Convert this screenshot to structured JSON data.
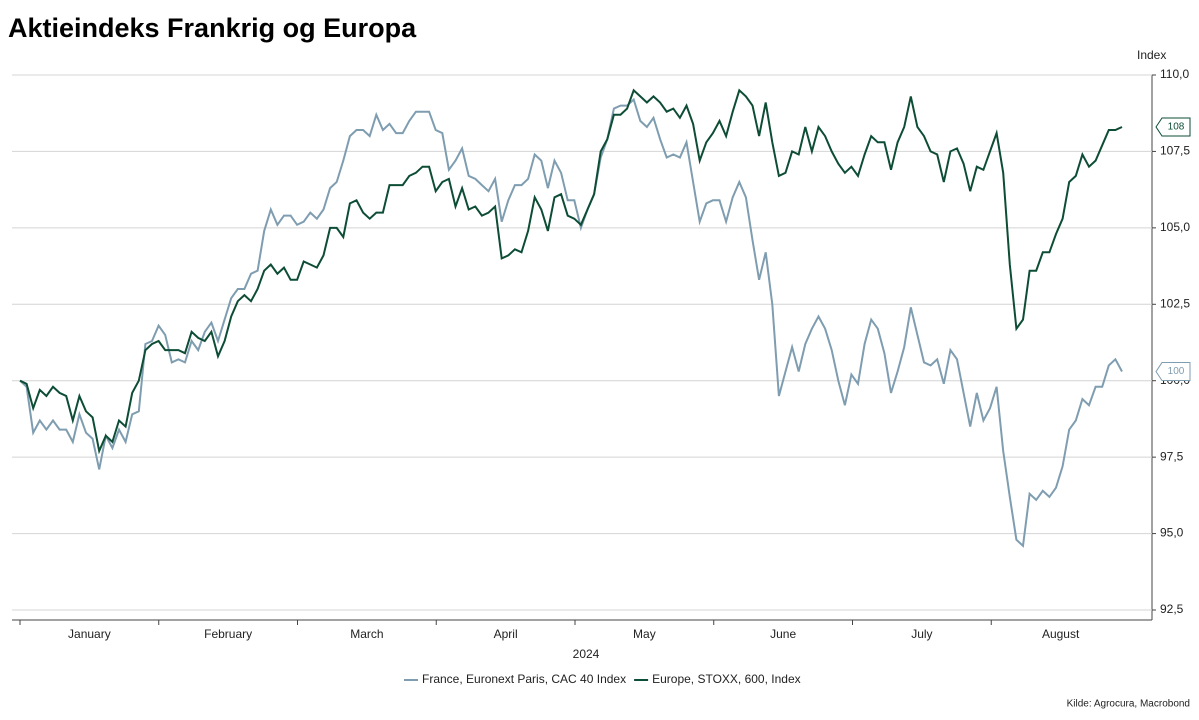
{
  "chart_data": {
    "type": "line",
    "title": "Aktieindeks Frankrig og Europa",
    "y_axis_label": "Index",
    "x_axis_label": "2024",
    "x_labels": [
      "January",
      "February",
      "March",
      "April",
      "May",
      "June",
      "July",
      "August"
    ],
    "source": "Kilde: Agrocura, Macrobond",
    "ylim": [
      92.5,
      110
    ],
    "yticks": [
      {
        "value": 92.5,
        "label": "92,5"
      },
      {
        "value": 95,
        "label": "95,0"
      },
      {
        "value": 97.5,
        "label": "97,5"
      },
      {
        "value": 100,
        "label": "100,0"
      },
      {
        "value": 102.5,
        "label": "102,5"
      },
      {
        "value": 105,
        "label": "105,0"
      },
      {
        "value": 107.5,
        "label": "107,5"
      },
      {
        "value": 110,
        "label": "110,0"
      }
    ],
    "grid": true,
    "legend": "bottom",
    "series": [
      {
        "name": "France, Euronext Paris, CAC 40 Index",
        "color": "#7f9db0",
        "end_label": "100",
        "values": [
          100,
          99.8,
          98.3,
          98.7,
          98.4,
          98.7,
          98.4,
          98.4,
          98.0,
          98.9,
          98.3,
          98.1,
          97.1,
          98.2,
          97.8,
          98.4,
          98.0,
          98.9,
          99.0,
          101.2,
          101.3,
          101.8,
          101.5,
          100.6,
          100.7,
          100.6,
          101.3,
          101.0,
          101.6,
          101.9,
          101.3,
          102.0,
          102.7,
          103.0,
          103.0,
          103.5,
          103.6,
          104.9,
          105.6,
          105.1,
          105.4,
          105.4,
          105.1,
          105.2,
          105.5,
          105.3,
          105.6,
          106.3,
          106.5,
          107.2,
          108.0,
          108.2,
          108.2,
          108.0,
          108.7,
          108.2,
          108.4,
          108.1,
          108.1,
          108.5,
          108.8,
          108.8,
          108.8,
          108.2,
          108.1,
          106.9,
          107.2,
          107.6,
          106.7,
          106.6,
          106.4,
          106.2,
          106.6,
          105.2,
          105.9,
          106.4,
          106.4,
          106.6,
          107.4,
          107.2,
          106.3,
          107.2,
          106.8,
          105.9,
          105.9,
          105.0,
          105.6,
          106.1,
          107.3,
          107.9,
          108.9,
          109.0,
          109.0,
          109.2,
          108.5,
          108.3,
          108.6,
          107.9,
          107.3,
          107.4,
          107.3,
          107.8,
          106.5,
          105.2,
          105.8,
          105.9,
          105.9,
          105.2,
          106.0,
          106.5,
          106.0,
          104.6,
          103.3,
          104.2,
          102.5,
          99.5,
          100.3,
          101.1,
          100.3,
          101.2,
          101.7,
          102.1,
          101.7,
          101.0,
          100.0,
          99.2,
          100.2,
          99.9,
          101.2,
          102.0,
          101.7,
          100.9,
          99.6,
          100.3,
          101.1,
          102.4,
          101.5,
          100.6,
          100.5,
          100.7,
          99.9,
          101.0,
          100.7,
          99.6,
          98.5,
          99.6,
          98.7,
          99.1,
          99.8,
          97.7,
          96.2,
          94.8,
          94.6,
          96.3,
          96.1,
          96.4,
          96.2,
          96.5,
          97.2,
          98.4,
          98.7,
          99.4,
          99.2,
          99.8,
          99.8,
          100.5,
          100.7,
          100.3
        ]
      },
      {
        "name": "Europe, STOXX, 600, Index",
        "color": "#0d4d35",
        "end_label": "108",
        "values": [
          100,
          99.9,
          99.1,
          99.7,
          99.5,
          99.8,
          99.6,
          99.5,
          98.7,
          99.5,
          99.0,
          98.8,
          97.7,
          98.2,
          98.0,
          98.7,
          98.5,
          99.6,
          100.0,
          101.0,
          101.2,
          101.3,
          101.0,
          101.0,
          101.0,
          100.9,
          101.6,
          101.4,
          101.3,
          101.6,
          100.8,
          101.3,
          102.1,
          102.6,
          102.8,
          102.6,
          103.0,
          103.6,
          103.8,
          103.5,
          103.7,
          103.3,
          103.3,
          103.9,
          103.8,
          103.7,
          104.1,
          105.0,
          105.0,
          104.7,
          105.8,
          105.9,
          105.5,
          105.3,
          105.5,
          105.5,
          106.4,
          106.4,
          106.4,
          106.7,
          106.8,
          107.0,
          107.0,
          106.2,
          106.5,
          106.6,
          105.7,
          106.3,
          105.6,
          105.7,
          105.4,
          105.5,
          105.7,
          104.0,
          104.1,
          104.3,
          104.2,
          104.9,
          106.0,
          105.6,
          104.9,
          106.0,
          106.1,
          105.4,
          105.3,
          105.1,
          105.6,
          106.1,
          107.5,
          107.9,
          108.7,
          108.7,
          108.9,
          109.5,
          109.3,
          109.1,
          109.3,
          109.1,
          108.8,
          108.9,
          108.6,
          109.0,
          108.4,
          107.2,
          107.8,
          108.1,
          108.5,
          108.0,
          108.8,
          109.5,
          109.3,
          109.0,
          108.0,
          109.1,
          107.8,
          106.7,
          106.8,
          107.5,
          107.4,
          108.3,
          107.5,
          108.3,
          108.0,
          107.5,
          107.1,
          106.8,
          107.0,
          106.7,
          107.4,
          108.0,
          107.8,
          107.8,
          106.9,
          107.8,
          108.3,
          109.3,
          108.3,
          108.0,
          107.5,
          107.4,
          106.5,
          107.5,
          107.6,
          107.1,
          106.2,
          107.0,
          106.9,
          107.5,
          108.1,
          106.8,
          103.8,
          101.7,
          102.0,
          103.6,
          103.6,
          104.2,
          104.2,
          104.8,
          105.3,
          106.5,
          106.7,
          107.4,
          107.0,
          107.2,
          107.7,
          108.2,
          108.2,
          108.3
        ]
      }
    ]
  }
}
